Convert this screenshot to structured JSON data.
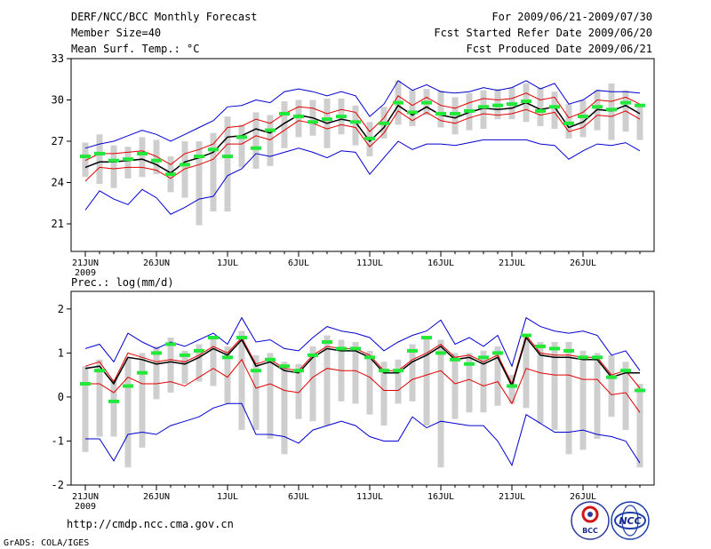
{
  "header": {
    "title": "DERF/NCC/BCC Monthly Forecast",
    "member_size": "Member Size=40",
    "variable": "Mean Surf. Temp.: °C",
    "period": "For 2009/06/21-2009/07/30",
    "started": "Fcst Started Refer Date 2009/06/20",
    "produced": "Fcst Produced Date 2009/06/21"
  },
  "footer": {
    "url": "http://cmdp.ncc.cma.gov.cn",
    "credit": "GrADS: COLA/IGES",
    "logo_left": "BCC",
    "logo_right": "NCC"
  },
  "colors": {
    "box": "#cfcfcf",
    "median": "#22e83a",
    "mean": "#000000",
    "spread": "#e00000",
    "extreme": "#0000d0"
  },
  "chart_data": [
    {
      "type": "line",
      "title": "Mean Surf. Temp.: °C",
      "xlabel": "",
      "ylabel": "",
      "x_tick_labels": [
        "21JUN",
        "26JUN",
        "1JUL",
        "6JUL",
        "11JUL",
        "16JUL",
        "21JUL",
        "26JUL"
      ],
      "x_tick_index": [
        0,
        5,
        10,
        15,
        20,
        25,
        30,
        35
      ],
      "year_label": "2009",
      "ylim": [
        19,
        33
      ],
      "yticks": [
        21,
        24,
        27,
        30,
        33
      ],
      "n_days": 40,
      "series": [
        {
          "name": "mean",
          "color": "#000000",
          "values": [
            25.1,
            25.5,
            25.5,
            25.6,
            25.7,
            25.3,
            24.7,
            25.5,
            25.8,
            26.2,
            27.3,
            27.4,
            27.9,
            27.6,
            28.3,
            28.9,
            28.7,
            28.3,
            28.6,
            28.4,
            27.0,
            28.0,
            29.6,
            28.9,
            29.5,
            28.9,
            28.7,
            29.1,
            29.4,
            29.3,
            29.4,
            29.8,
            29.3,
            29.5,
            28.0,
            28.4,
            29.3,
            29.2,
            29.6,
            29.0
          ]
        },
        {
          "name": "mean_plus_sd",
          "color": "#e00000",
          "values": [
            25.6,
            26.1,
            26.1,
            26.2,
            26.3,
            25.9,
            25.3,
            26.1,
            26.4,
            26.8,
            28.0,
            28.1,
            28.6,
            28.3,
            29.0,
            29.5,
            29.4,
            29.0,
            29.3,
            29.1,
            27.7,
            28.7,
            30.3,
            29.6,
            30.2,
            29.6,
            29.4,
            29.8,
            30.1,
            30.0,
            30.1,
            30.5,
            30.0,
            30.2,
            28.7,
            29.1,
            30.0,
            29.9,
            30.2,
            29.7
          ]
        },
        {
          "name": "mean_minus_sd",
          "color": "#e00000",
          "values": [
            24.1,
            25.1,
            25.0,
            25.1,
            25.1,
            24.9,
            24.3,
            25.0,
            25.3,
            25.7,
            26.8,
            26.8,
            27.4,
            27.1,
            27.8,
            28.5,
            28.3,
            27.9,
            28.2,
            28.0,
            26.6,
            27.6,
            29.2,
            28.5,
            29.1,
            28.5,
            28.3,
            28.7,
            29.0,
            28.9,
            29.0,
            29.3,
            28.9,
            29.1,
            27.7,
            28.0,
            28.9,
            28.8,
            29.2,
            28.6
          ]
        },
        {
          "name": "max",
          "color": "#0000d0",
          "values": [
            26.5,
            26.8,
            27.0,
            27.4,
            27.8,
            27.5,
            27.0,
            27.5,
            28.0,
            28.5,
            29.5,
            29.6,
            30.0,
            29.8,
            30.6,
            30.8,
            30.6,
            30.3,
            30.6,
            30.3,
            28.8,
            29.7,
            31.4,
            30.7,
            31.1,
            30.6,
            30.5,
            30.6,
            30.9,
            30.7,
            30.9,
            31.4,
            30.8,
            31.2,
            29.7,
            30.0,
            30.7,
            30.6,
            30.6,
            30.5
          ]
        },
        {
          "name": "min",
          "color": "#0000d0",
          "values": [
            22.0,
            23.4,
            22.8,
            22.4,
            23.5,
            22.9,
            21.7,
            22.2,
            22.8,
            23.0,
            24.5,
            25.0,
            26.1,
            25.9,
            26.2,
            26.5,
            26.2,
            25.8,
            26.3,
            26.2,
            24.6,
            25.8,
            27.0,
            26.4,
            26.8,
            26.8,
            26.7,
            26.9,
            27.1,
            27.1,
            27.1,
            27.1,
            26.8,
            26.7,
            25.7,
            26.3,
            26.8,
            26.7,
            26.9,
            26.3
          ]
        },
        {
          "name": "median",
          "color": "#22e83a",
          "values": [
            25.9,
            26.1,
            25.6,
            25.7,
            26.1,
            25.6,
            24.6,
            25.3,
            25.9,
            26.4,
            25.9,
            27.3,
            26.5,
            27.8,
            29.0,
            28.8,
            28.4,
            28.6,
            28.8,
            28.4,
            27.2,
            28.3,
            29.8,
            29.1,
            29.8,
            29.0,
            29.0,
            29.2,
            29.5,
            29.6,
            29.7,
            29.9,
            29.2,
            29.5,
            28.3,
            28.8,
            29.5,
            29.3,
            29.8,
            29.6
          ]
        },
        {
          "name": "box_upper",
          "color": "#cfcfcf",
          "values": [
            26.9,
            27.5,
            26.7,
            26.6,
            27.3,
            27.1,
            25.9,
            27.0,
            27.0,
            27.6,
            28.8,
            28.2,
            29.1,
            28.9,
            29.9,
            30.0,
            30.0,
            30.1,
            30.1,
            29.6,
            28.4,
            29.5,
            31.4,
            30.7,
            30.8,
            30.7,
            30.2,
            30.5,
            30.7,
            30.8,
            30.9,
            31.2,
            30.9,
            30.6,
            29.7,
            30.0,
            30.7,
            31.2,
            30.7,
            29.7
          ]
        },
        {
          "name": "box_lower",
          "color": "#cfcfcf",
          "values": [
            24.4,
            23.9,
            23.6,
            24.3,
            24.4,
            24.6,
            23.3,
            22.9,
            20.9,
            21.9,
            21.9,
            25.1,
            25.0,
            25.2,
            26.5,
            27.3,
            27.4,
            26.5,
            27.5,
            26.7,
            25.9,
            27.2,
            28.2,
            28.1,
            28.9,
            28.0,
            27.5,
            27.8,
            27.9,
            28.6,
            28.6,
            28.4,
            28.1,
            27.9,
            27.2,
            27.3,
            27.8,
            27.1,
            27.7,
            27.1
          ]
        }
      ]
    },
    {
      "type": "line",
      "title": "Prec.: log(mm/d)",
      "xlabel": "",
      "ylabel": "",
      "x_tick_labels": [
        "21JUN",
        "26JUN",
        "1JUL",
        "6JUL",
        "11JUL",
        "16JUL",
        "21JUL",
        "26JUL"
      ],
      "x_tick_index": [
        0,
        5,
        10,
        15,
        20,
        25,
        30,
        35
      ],
      "year_label": "2009",
      "ylim": [
        -2,
        2.4
      ],
      "yticks": [
        -2,
        -1,
        0,
        1,
        2
      ],
      "n_days": 40,
      "series": [
        {
          "name": "mean",
          "color": "#000000",
          "values": [
            0.65,
            0.7,
            0.3,
            0.9,
            0.85,
            0.75,
            0.8,
            0.75,
            0.9,
            1.1,
            0.95,
            1.3,
            0.7,
            0.8,
            0.6,
            0.55,
            0.9,
            1.1,
            1.05,
            1.05,
            0.9,
            0.55,
            0.55,
            0.8,
            0.95,
            1.15,
            0.85,
            0.9,
            0.75,
            0.9,
            0.25,
            1.35,
            0.95,
            0.9,
            0.9,
            0.85,
            0.85,
            0.45,
            0.55,
            0.55
          ]
        },
        {
          "name": "mean_plus_sd",
          "color": "#e00000",
          "values": [
            0.7,
            0.8,
            0.35,
            1.0,
            0.9,
            0.8,
            0.85,
            0.8,
            0.95,
            1.15,
            1.0,
            1.35,
            0.75,
            0.85,
            0.65,
            0.6,
            0.95,
            1.15,
            1.1,
            1.1,
            0.95,
            0.6,
            0.6,
            0.85,
            1.0,
            1.2,
            0.9,
            0.95,
            0.8,
            0.95,
            0.3,
            1.4,
            1.0,
            0.95,
            0.95,
            0.9,
            0.9,
            0.5,
            0.6,
            0.2
          ]
        },
        {
          "name": "mean_minus_sd",
          "color": "#e00000",
          "values": [
            0.3,
            0.3,
            0.1,
            0.45,
            0.3,
            0.3,
            0.35,
            0.25,
            0.45,
            0.65,
            0.45,
            0.85,
            0.2,
            0.3,
            0.15,
            0.1,
            0.45,
            0.65,
            0.6,
            0.6,
            0.45,
            0.15,
            0.15,
            0.4,
            0.5,
            0.6,
            0.3,
            0.4,
            0.25,
            0.35,
            -0.15,
            0.65,
            0.55,
            0.5,
            0.5,
            0.4,
            0.4,
            0.05,
            0.1,
            -0.35
          ]
        },
        {
          "name": "max",
          "color": "#0000d0",
          "values": [
            1.1,
            1.2,
            0.8,
            1.45,
            1.25,
            1.1,
            1.25,
            1.15,
            1.3,
            1.45,
            1.2,
            1.8,
            1.25,
            1.3,
            1.1,
            1.05,
            1.35,
            1.6,
            1.5,
            1.45,
            1.35,
            1.05,
            1.25,
            1.4,
            1.5,
            1.75,
            1.2,
            1.35,
            1.15,
            1.4,
            0.7,
            1.8,
            1.6,
            1.5,
            1.45,
            1.5,
            1.4,
            0.95,
            1.05,
            0.6
          ]
        },
        {
          "name": "min",
          "color": "#0000d0",
          "values": [
            -0.95,
            -0.95,
            -1.45,
            -0.85,
            -0.8,
            -0.85,
            -0.65,
            -0.55,
            -0.45,
            -0.25,
            -0.15,
            -0.15,
            -0.85,
            -0.85,
            -0.9,
            -1.05,
            -0.75,
            -0.65,
            -0.55,
            -0.65,
            -0.9,
            -1.0,
            -1.0,
            -0.45,
            -0.7,
            -0.55,
            -0.6,
            -0.65,
            -0.65,
            -1.0,
            -1.55,
            -0.4,
            -0.6,
            -0.8,
            -0.8,
            -0.75,
            -0.85,
            -0.9,
            -1.0,
            -1.5
          ]
        },
        {
          "name": "median",
          "color": "#22e83a",
          "values": [
            0.3,
            0.6,
            -0.1,
            0.25,
            0.55,
            1.0,
            1.2,
            0.95,
            1.05,
            1.35,
            0.9,
            1.35,
            0.6,
            0.85,
            0.7,
            0.6,
            0.95,
            1.25,
            1.1,
            1.1,
            0.9,
            0.6,
            0.6,
            1.05,
            1.35,
            1.0,
            0.85,
            0.75,
            0.9,
            1.0,
            0.25,
            1.4,
            1.15,
            1.1,
            1.05,
            0.9,
            0.9,
            0.45,
            0.6,
            0.15
          ]
        },
        {
          "name": "box_upper",
          "color": "#cfcfcf",
          "values": [
            0.7,
            0.85,
            0.4,
            0.9,
            1.0,
            1.15,
            1.35,
            1.05,
            1.2,
            1.35,
            1.15,
            1.5,
            0.95,
            1.0,
            0.8,
            0.75,
            1.15,
            1.4,
            1.3,
            1.25,
            1.05,
            0.8,
            0.85,
            1.2,
            1.35,
            1.3,
            1.0,
            1.0,
            1.05,
            1.15,
            0.5,
            1.4,
            1.25,
            1.25,
            1.25,
            1.05,
            1.0,
            0.95,
            0.8,
            0.3
          ]
        },
        {
          "name": "box_lower",
          "color": "#cfcfcf",
          "values": [
            -1.25,
            -0.9,
            -0.9,
            -1.6,
            -1.15,
            -0.05,
            0.1,
            0.3,
            0.35,
            0.25,
            -0.15,
            -0.75,
            -0.75,
            -0.95,
            -1.3,
            -0.5,
            -0.55,
            -0.65,
            -0.1,
            -0.15,
            -0.4,
            -0.65,
            -0.15,
            -0.1,
            -0.65,
            -1.6,
            -0.5,
            -0.35,
            -0.35,
            -0.2,
            -0.15,
            -0.25,
            -0.6,
            -0.75,
            -1.3,
            -1.2,
            -0.95,
            -0.45,
            -0.75,
            -1.6
          ]
        }
      ]
    }
  ]
}
